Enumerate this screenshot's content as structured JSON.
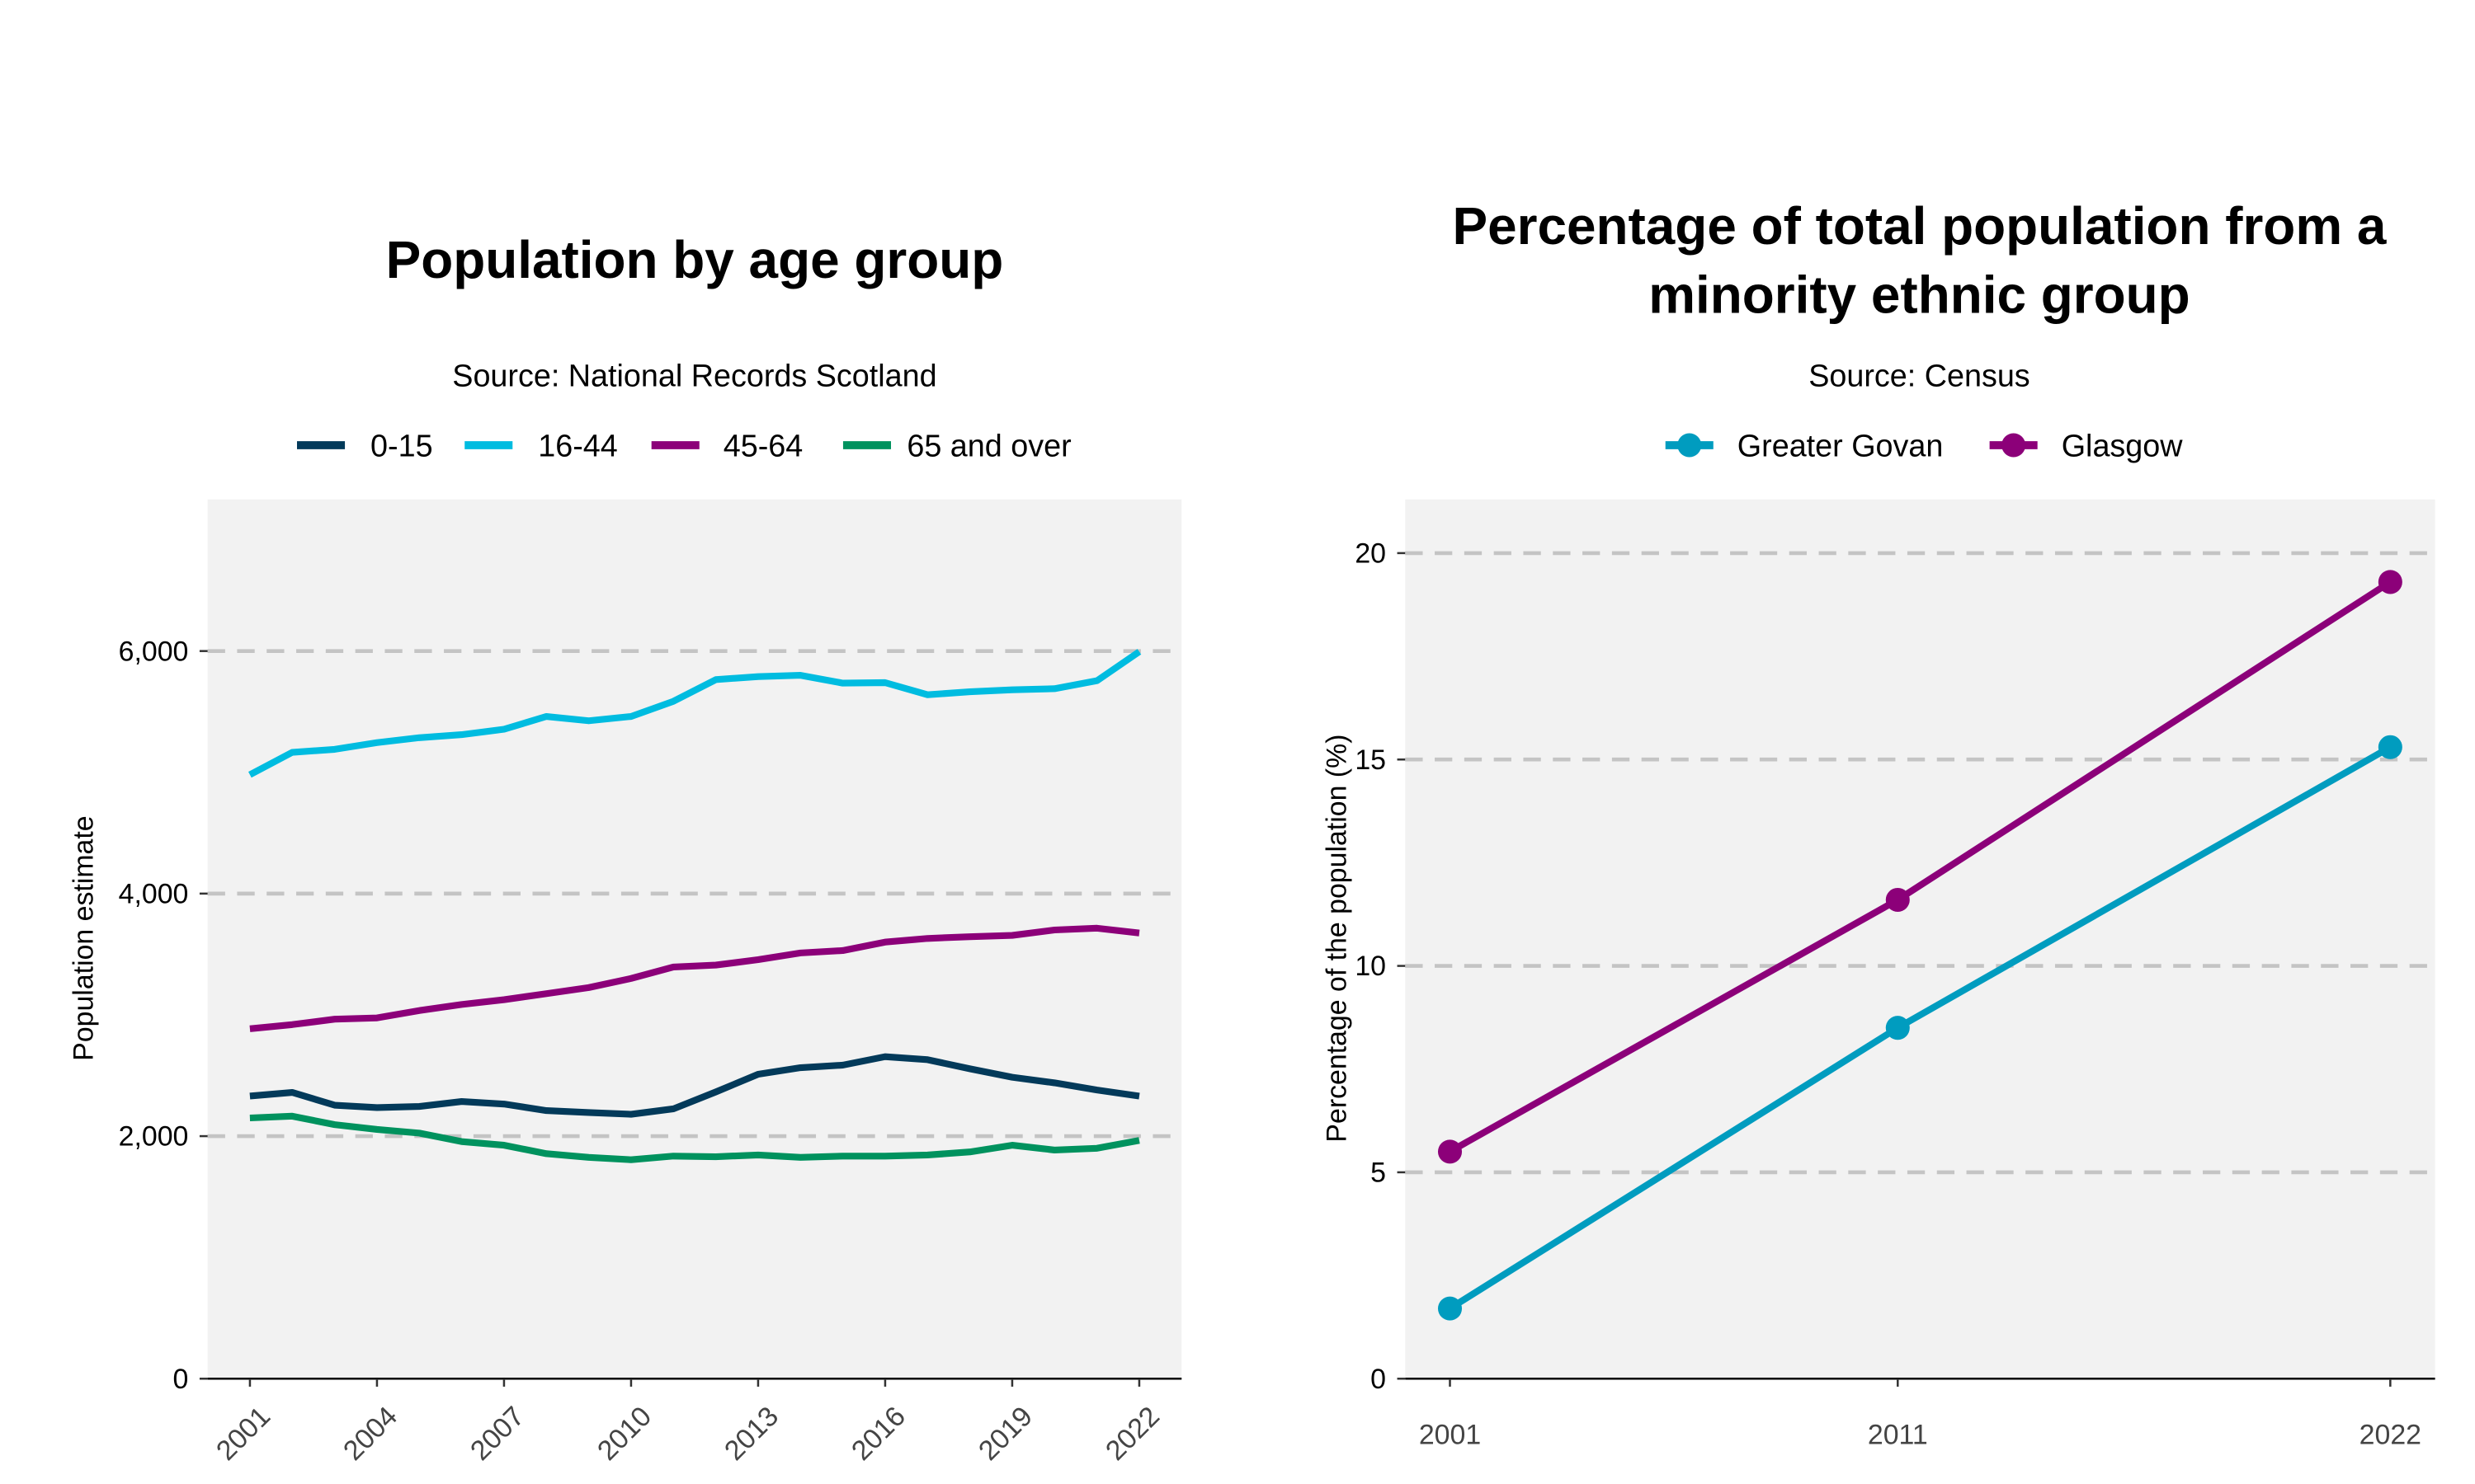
{
  "chart_data": [
    {
      "type": "line",
      "title": "Population by age group",
      "subtitle": "Source: National Records Scotland",
      "xlabel": "",
      "ylabel": "Population estimate",
      "legend_position": "top",
      "grid": "horizontal dashed major",
      "background": "#f2f2f2",
      "xlim": [
        2000,
        2023
      ],
      "ylim": [
        0,
        7250
      ],
      "x_ticks": [
        2001,
        2004,
        2007,
        2010,
        2013,
        2016,
        2019,
        2022
      ],
      "x_tick_labels": [
        "2001",
        "2004",
        "2007",
        "2010",
        "2013",
        "2016",
        "2019",
        "2022"
      ],
      "y_ticks": [
        0,
        2000,
        4000,
        6000
      ],
      "y_tick_labels": [
        "0",
        "2,000",
        "4,000",
        "6,000"
      ],
      "x": [
        2001,
        2002,
        2003,
        2004,
        2005,
        2006,
        2007,
        2008,
        2009,
        2010,
        2011,
        2012,
        2013,
        2014,
        2015,
        2016,
        2017,
        2018,
        2019,
        2020,
        2021,
        2022
      ],
      "series": [
        {
          "name": "0-15",
          "color": "#033a5a",
          "values": [
            2330,
            2360,
            2255,
            2235,
            2245,
            2285,
            2265,
            2210,
            2195,
            2180,
            2225,
            2365,
            2510,
            2565,
            2585,
            2655,
            2630,
            2555,
            2485,
            2440,
            2380,
            2330
          ]
        },
        {
          "name": "16-44",
          "color": "#00bce0",
          "values": [
            4980,
            5165,
            5190,
            5245,
            5285,
            5310,
            5355,
            5460,
            5425,
            5460,
            5585,
            5765,
            5790,
            5800,
            5735,
            5740,
            5640,
            5665,
            5680,
            5690,
            5755,
            5995
          ]
        },
        {
          "name": "45-64",
          "color": "#8c0079",
          "values": [
            2885,
            2920,
            2965,
            2975,
            3035,
            3085,
            3125,
            3175,
            3225,
            3300,
            3395,
            3410,
            3455,
            3510,
            3530,
            3600,
            3630,
            3645,
            3655,
            3700,
            3715,
            3675
          ]
        },
        {
          "name": "65 and over",
          "color": "#00925e",
          "values": [
            2150,
            2165,
            2095,
            2055,
            2025,
            1955,
            1925,
            1855,
            1825,
            1805,
            1835,
            1830,
            1845,
            1825,
            1835,
            1835,
            1845,
            1870,
            1925,
            1885,
            1900,
            1965
          ]
        }
      ]
    },
    {
      "type": "line",
      "title_lines": [
        "Percentage of total population from a",
        "minority ethnic group"
      ],
      "subtitle": "Source: Census",
      "xlabel": "",
      "ylabel": "Percentage of the population (%)",
      "legend_position": "top",
      "grid": "horizontal dashed major",
      "background": "#f2f2f2",
      "markers": true,
      "xlim": [
        2000,
        2023
      ],
      "ylim": [
        0,
        21.3
      ],
      "x_ticks": [
        2001,
        2011,
        2022
      ],
      "x_tick_labels": [
        "2001",
        "2011",
        "2022"
      ],
      "y_ticks": [
        0,
        5,
        10,
        15,
        20
      ],
      "y_tick_labels": [
        "0",
        "5",
        "10",
        "15",
        "20"
      ],
      "x": [
        2001,
        2011,
        2022
      ],
      "series": [
        {
          "name": "Greater Govan",
          "color": "#009cbf",
          "values": [
            1.7,
            8.5,
            15.3
          ]
        },
        {
          "name": "Glasgow",
          "color": "#8c0079",
          "values": [
            5.5,
            11.6,
            19.3
          ]
        }
      ]
    }
  ]
}
